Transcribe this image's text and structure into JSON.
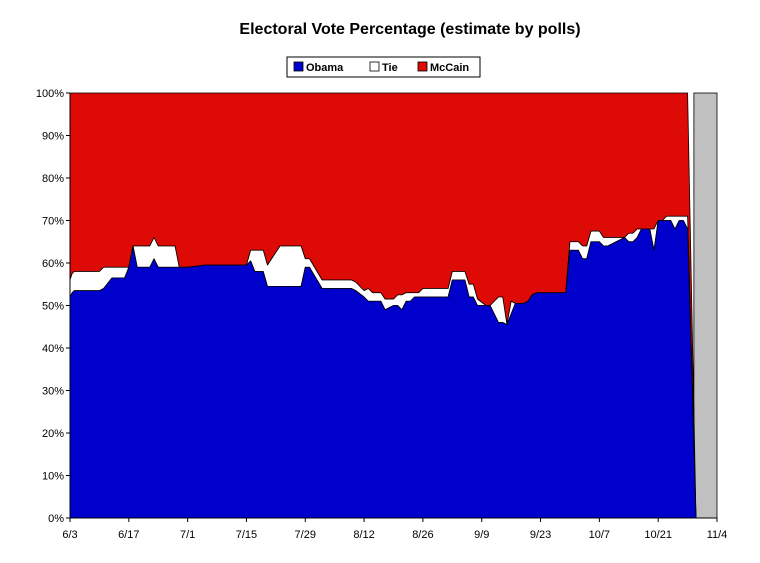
{
  "chart_data": {
    "type": "area",
    "stacked": true,
    "title": "Electoral Vote Percentage (estimate by polls)",
    "xlabel": "",
    "ylabel": "",
    "x_axis": {
      "start": "6/3",
      "end": "11/4",
      "tick_labels": [
        "6/3",
        "6/17",
        "7/1",
        "7/15",
        "7/29",
        "8/12",
        "8/26",
        "9/9",
        "9/23",
        "10/7",
        "10/21",
        "11/4"
      ],
      "tick_days": [
        0,
        14,
        28,
        42,
        56,
        70,
        84,
        98,
        112,
        126,
        140,
        154
      ]
    },
    "y_axis": {
      "ylim": [
        0,
        100
      ],
      "tick_labels": [
        "0%",
        "10%",
        "20%",
        "30%",
        "40%",
        "50%",
        "60%",
        "70%",
        "80%",
        "90%",
        "100%"
      ]
    },
    "legend": {
      "placement": "top-center",
      "entries": [
        "Obama",
        "Tie",
        "McCain"
      ]
    },
    "colors": {
      "Obama": "#0000cc",
      "Tie": "#ffffff",
      "McCain": "#dd0a06",
      "future": "#c0c0c0"
    },
    "grid": false,
    "series": [
      {
        "name": "Obama",
        "x": [
          0,
          0.5,
          1,
          4,
          7,
          8,
          10,
          11,
          13,
          14,
          15,
          16,
          19,
          20,
          21,
          25,
          26,
          27,
          28,
          32,
          33,
          42,
          43,
          44,
          46,
          47,
          50,
          55,
          56,
          57,
          60,
          61,
          63,
          67,
          68,
          70,
          71,
          72,
          73,
          74,
          75,
          77,
          78,
          79,
          80,
          81,
          82,
          83,
          84,
          85,
          86,
          90,
          91,
          93,
          94,
          95,
          96,
          97,
          99,
          100,
          102,
          103,
          104,
          105,
          106,
          107,
          108,
          109,
          110,
          111,
          112,
          114,
          118,
          119,
          121,
          122,
          123,
          124,
          126,
          127,
          128,
          130,
          132,
          133,
          134,
          135,
          136,
          137,
          138,
          139,
          140,
          141,
          142,
          143,
          144,
          145,
          146,
          147,
          149
        ],
        "values": [
          52,
          53,
          53.5,
          53.5,
          53.5,
          54,
          56.5,
          56.5,
          56.5,
          59,
          64,
          59,
          59,
          61,
          59,
          59,
          59,
          59,
          59,
          59.5,
          59.5,
          59.5,
          60.5,
          58,
          58,
          54.5,
          54.5,
          54.5,
          59,
          59,
          54,
          54,
          54,
          54,
          53.5,
          52,
          51,
          51,
          51,
          51,
          49,
          50,
          50,
          49,
          51,
          51,
          52,
          52,
          52,
          52,
          52,
          52,
          56,
          56,
          56,
          52,
          52,
          50,
          50,
          50,
          46,
          46,
          45.5,
          48,
          50.5,
          50.5,
          50.5,
          51,
          52.5,
          53,
          53,
          53,
          53,
          63,
          63,
          61,
          61,
          65,
          65,
          64,
          64,
          65,
          66,
          65,
          65,
          66,
          68,
          68,
          68,
          63,
          70,
          70,
          70,
          70,
          68,
          70,
          70,
          68,
          0
        ],
        "kind": "lower"
      },
      {
        "name": "Tie",
        "x": [
          0,
          0.5,
          1,
          4,
          7,
          8,
          10,
          11,
          13,
          14,
          15,
          16,
          19,
          20,
          21,
          25,
          26,
          27,
          28,
          32,
          33,
          42,
          43,
          44,
          46,
          47,
          50,
          55,
          56,
          57,
          60,
          61,
          63,
          67,
          68,
          70,
          71,
          72,
          73,
          74,
          75,
          77,
          78,
          79,
          80,
          81,
          82,
          83,
          84,
          85,
          86,
          90,
          91,
          93,
          94,
          95,
          96,
          97,
          99,
          100,
          102,
          103,
          104,
          105,
          106,
          107,
          108,
          109,
          110,
          111,
          112,
          114,
          118,
          119,
          121,
          122,
          123,
          124,
          126,
          127,
          128,
          130,
          132,
          133,
          134,
          135,
          136,
          137,
          138,
          139,
          140,
          141,
          142,
          143,
          144,
          145,
          146,
          147,
          149
        ],
        "values": [
          4,
          4.5,
          4.5,
          4.5,
          4.5,
          5,
          2.5,
          2.5,
          2.5,
          0,
          0,
          5,
          5,
          5,
          5,
          5,
          0,
          0,
          0,
          0,
          0,
          0,
          2.5,
          5,
          5,
          5,
          9.5,
          9.5,
          2,
          2,
          2,
          2,
          2,
          2,
          2,
          1.5,
          3,
          2,
          2,
          2,
          2.5,
          1.5,
          2.5,
          3.5,
          2,
          2,
          1,
          1,
          2,
          2,
          2,
          2,
          2,
          2,
          2,
          3,
          3,
          1.5,
          0,
          0,
          6,
          6,
          0,
          3,
          0,
          0,
          0,
          0,
          0,
          0,
          0,
          0,
          0,
          2,
          2,
          3,
          3,
          2.5,
          2.5,
          2,
          2,
          1,
          0,
          2,
          2,
          2,
          0,
          0,
          0,
          5,
          0,
          0,
          1,
          1,
          3,
          1,
          1,
          3,
          0
        ],
        "kind": "middle"
      },
      {
        "name": "McCain",
        "x": [
          0,
          0.5,
          1,
          4,
          7,
          8,
          10,
          11,
          13,
          14,
          15,
          16,
          19,
          20,
          21,
          25,
          26,
          27,
          28,
          32,
          33,
          42,
          43,
          44,
          46,
          47,
          50,
          55,
          56,
          57,
          60,
          61,
          63,
          67,
          68,
          70,
          71,
          72,
          73,
          74,
          75,
          77,
          78,
          79,
          80,
          81,
          82,
          83,
          84,
          85,
          86,
          90,
          91,
          93,
          94,
          95,
          96,
          97,
          99,
          100,
          102,
          103,
          104,
          105,
          106,
          107,
          108,
          109,
          110,
          111,
          112,
          114,
          118,
          119,
          121,
          122,
          123,
          124,
          126,
          127,
          128,
          130,
          132,
          133,
          134,
          135,
          136,
          137,
          138,
          139,
          140,
          141,
          142,
          143,
          144,
          145,
          146,
          147,
          149
        ],
        "values": [
          44,
          42.5,
          42,
          42,
          42,
          41,
          41,
          41,
          41,
          41,
          36,
          36,
          36,
          34,
          36,
          36,
          41,
          41,
          41,
          40.5,
          40.5,
          40.5,
          37,
          37,
          37,
          40.5,
          36,
          36,
          39,
          39,
          44,
          44,
          44,
          44,
          44.5,
          46.5,
          46,
          47,
          47,
          47,
          48.5,
          48.5,
          47.5,
          47.5,
          47,
          47,
          47,
          47,
          46,
          46,
          46,
          46,
          42,
          42,
          42,
          45,
          45,
          48.5,
          50,
          50,
          48,
          48,
          54.5,
          49,
          49.5,
          49.5,
          49.5,
          49,
          47.5,
          47,
          47,
          47,
          47,
          35,
          35,
          36,
          36,
          32.5,
          32.5,
          34,
          34,
          34,
          34,
          33,
          33,
          32,
          32,
          32,
          32,
          32,
          30,
          30,
          29,
          29,
          29,
          29,
          29,
          29,
          0
        ],
        "kind": "upper"
      }
    ],
    "future_region": {
      "from": 148.5,
      "to": 154
    }
  }
}
